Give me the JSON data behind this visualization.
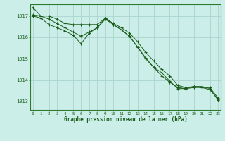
{
  "title": "Graphe pression niveau de la mer (hPa)",
  "background_color": "#cceee8",
  "grid_color": "#aad4ce",
  "line_color": "#1a5c1a",
  "spine_color": "#2d7a2d",
  "xlim": [
    -0.3,
    23.3
  ],
  "ylim": [
    1012.6,
    1017.55
  ],
  "yticks": [
    1013,
    1014,
    1015,
    1016,
    1017
  ],
  "xticks": [
    0,
    1,
    2,
    3,
    4,
    5,
    6,
    7,
    8,
    9,
    10,
    11,
    12,
    13,
    14,
    15,
    16,
    17,
    18,
    19,
    20,
    21,
    22,
    23
  ],
  "line1_x": [
    0,
    1,
    2,
    3,
    4,
    5,
    6,
    7,
    8,
    9,
    10,
    11,
    12,
    13,
    14,
    15,
    16,
    17,
    18,
    19,
    20,
    21,
    22,
    23
  ],
  "line1_y": [
    1017.4,
    1017.0,
    1017.0,
    1016.85,
    1016.65,
    1016.6,
    1016.6,
    1016.6,
    1016.6,
    1016.9,
    1016.65,
    1016.45,
    1016.2,
    1015.8,
    1015.3,
    1014.9,
    1014.5,
    1014.2,
    1013.75,
    1013.65,
    1013.7,
    1013.65,
    1013.65,
    1013.15
  ],
  "line2_x": [
    0,
    1,
    2,
    3,
    4,
    5,
    6,
    7,
    8,
    9,
    10,
    11,
    12,
    13,
    14,
    15,
    16,
    17,
    18,
    19,
    20,
    21,
    22,
    23
  ],
  "line2_y": [
    1017.05,
    1017.0,
    1016.85,
    1016.65,
    1016.45,
    1016.25,
    1016.05,
    1016.25,
    1016.45,
    1016.85,
    1016.6,
    1016.35,
    1016.05,
    1015.55,
    1015.0,
    1014.6,
    1014.2,
    1013.9,
    1013.65,
    1013.6,
    1013.65,
    1013.65,
    1013.55,
    1013.1
  ],
  "line3_x": [
    0,
    1,
    2,
    3,
    4,
    5,
    6,
    7,
    8,
    9,
    10,
    11,
    12,
    13,
    14,
    15,
    16,
    17,
    18,
    19,
    20,
    21,
    22,
    23
  ],
  "line3_y": [
    1017.0,
    1016.9,
    1016.6,
    1016.45,
    1016.3,
    1016.1,
    1015.7,
    1016.2,
    1016.45,
    1016.9,
    1016.6,
    1016.35,
    1016.05,
    1015.55,
    1015.05,
    1014.6,
    1014.35,
    1013.95,
    1013.6,
    1013.6,
    1013.7,
    1013.7,
    1013.6,
    1013.05
  ]
}
